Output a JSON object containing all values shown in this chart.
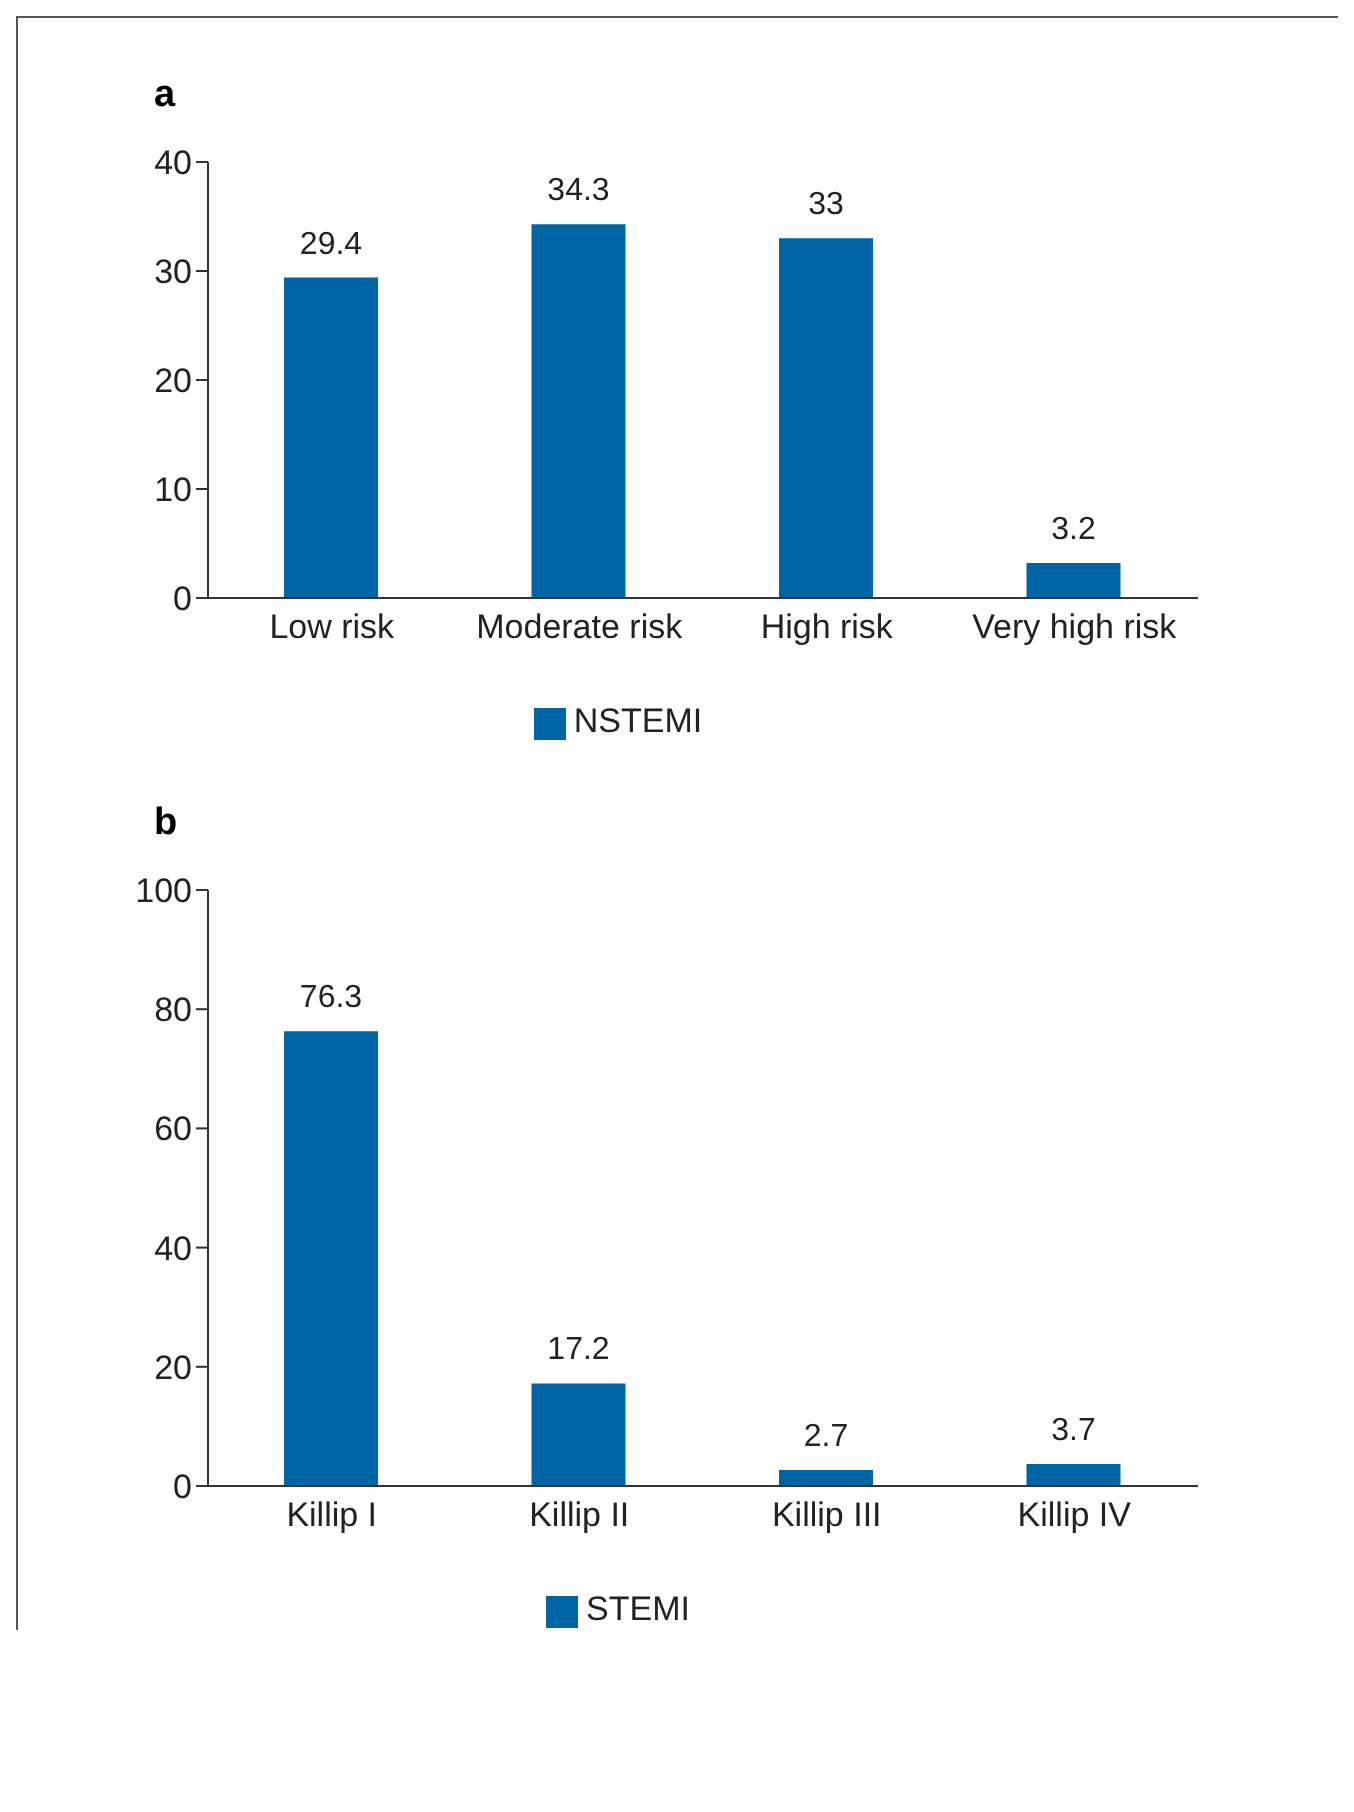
{
  "chart_data": [
    {
      "type": "bar",
      "title": "a",
      "categories": [
        "Low risk",
        "Moderate risk",
        "High risk",
        "Very high risk"
      ],
      "series": [
        {
          "name": "NSTEMI",
          "color": "#0065a4",
          "values": [
            29.4,
            34.3,
            33,
            3.2
          ]
        }
      ],
      "ylim": [
        0,
        40
      ],
      "yticks": [
        0,
        10,
        20,
        30,
        40
      ],
      "data_labels": true,
      "legend": "bottom",
      "grid": false
    },
    {
      "type": "bar",
      "title": "b",
      "categories": [
        "Killip I",
        "Killip II",
        "Killip III",
        "Killip IV"
      ],
      "series": [
        {
          "name": "STEMI",
          "color": "#0065a4",
          "values": [
            76.3,
            17.2,
            2.7,
            3.7
          ]
        }
      ],
      "ylim": [
        0,
        100
      ],
      "yticks": [
        0,
        20,
        40,
        60,
        80,
        100
      ],
      "data_labels": true,
      "legend": "bottom",
      "grid": false
    }
  ]
}
